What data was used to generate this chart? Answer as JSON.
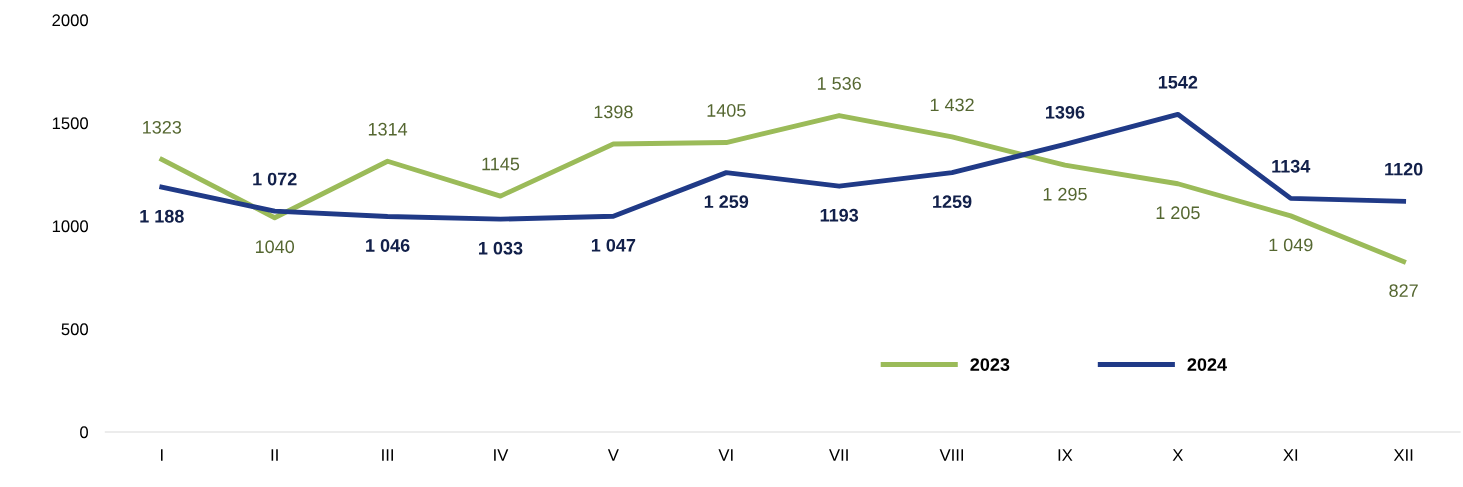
{
  "chart_data": {
    "type": "line",
    "categories": [
      "I",
      "II",
      "III",
      "IV",
      "V",
      "VI",
      "VII",
      "VIII",
      "IX",
      "X",
      "XI",
      "XII"
    ],
    "series": [
      {
        "name": "2023",
        "color": "#9bbb59",
        "values": [
          1323,
          1040,
          1314,
          1145,
          1398,
          1405,
          1536,
          1432,
          1295,
          1205,
          1049,
          827
        ],
        "value_labels": [
          "1323",
          "1040",
          "1314",
          "1145",
          "1398",
          "1405",
          "1 536",
          "1 432",
          "1 295",
          "1 205",
          "1 049",
          "827"
        ]
      },
      {
        "name": "2024",
        "color": "#203a87",
        "values": [
          1188,
          1072,
          1046,
          1033,
          1047,
          1259,
          1193,
          1259,
          1396,
          1542,
          1134,
          1120
        ],
        "value_labels": [
          "1 188",
          "1 072",
          "1 046",
          "1 033",
          "1 047",
          "1 259",
          "1193",
          "1259",
          "1396",
          "1542",
          "1134",
          "1120"
        ]
      }
    ],
    "ylim": [
      0,
      2000
    ],
    "yticks": [
      0,
      500,
      1000,
      1500,
      2000
    ],
    "grid": false,
    "legend": "bottom right",
    "marker": "none",
    "line_style": "solid"
  }
}
